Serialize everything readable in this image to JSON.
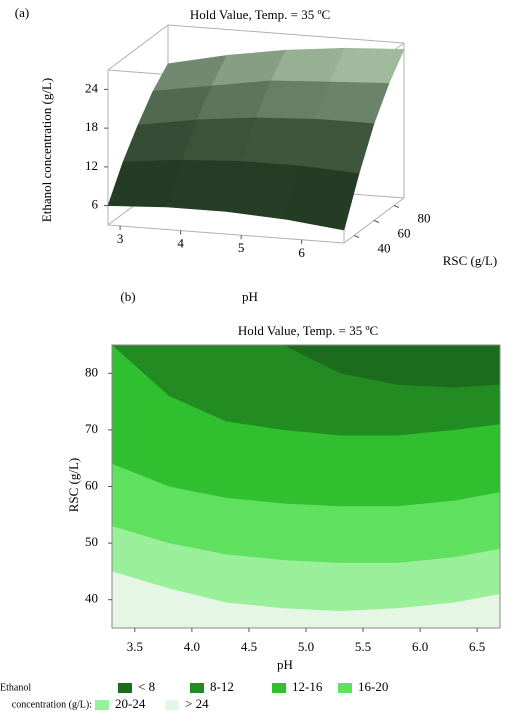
{
  "chart_data": [
    {
      "type": "surface",
      "panel": "(a)",
      "title": "Hold Value, Temp. = 35 ºC",
      "xlabel": "pH",
      "ylabel": "RSC (g/L)",
      "zlabel": "Ethanol concentration (g/L)",
      "x": [
        2.8,
        3.775,
        4.75,
        5.725,
        6.7
      ],
      "y": [
        30,
        45,
        60,
        75,
        90
      ],
      "z": [
        [
          6,
          6.5,
          6.5,
          6,
          5
        ],
        [
          11,
          12,
          12.5,
          12.5,
          12
        ],
        [
          15,
          16.5,
          17.5,
          18,
          18
        ],
        [
          18.5,
          20,
          21.5,
          22,
          22.5
        ],
        [
          21,
          23,
          24.5,
          25.5,
          26
        ]
      ],
      "xlim": [
        2.8,
        6.7
      ],
      "ylim": [
        30,
        90
      ],
      "zlim": [
        3,
        27
      ],
      "xticks": [
        3,
        4,
        5,
        6
      ],
      "yticks": [
        40,
        60,
        80
      ],
      "zticks": [
        6,
        12,
        18,
        24
      ]
    },
    {
      "type": "contour",
      "panel": "(b)",
      "title": "Hold Value, Temp. = 35 ºC",
      "xlabel": "pH",
      "ylabel": "RSC (g/L)",
      "legend_title": [
        "Ethanol",
        "concentration (g/L):"
      ],
      "x": [
        3.3,
        3.8,
        4.3,
        4.8,
        5.3,
        5.8,
        6.3,
        6.7
      ],
      "regions": [
        {
          "name": "< 8",
          "color": "#1d6b1d"
        },
        {
          "name": "8-12",
          "color": "#228b22"
        },
        {
          "name": "12-16",
          "color": "#2fbf2f"
        },
        {
          "name": "16-20",
          "color": "#5fe05f"
        },
        {
          "name": "20-24",
          "color": "#9af09a"
        },
        {
          "name": "> 24",
          "color": "#e6f6e4"
        }
      ],
      "boundaries": [
        [
          null,
          null,
          null,
          85,
          80,
          78,
          77.5,
          78
        ],
        [
          85,
          76,
          71.5,
          70,
          69,
          69,
          70,
          71
        ],
        [
          64,
          60,
          58,
          57,
          56.5,
          56.5,
          57.5,
          59
        ],
        [
          53,
          50,
          48,
          47,
          46.5,
          46.5,
          47.5,
          49
        ],
        [
          45,
          42,
          39.5,
          38.5,
          38,
          38.5,
          39.5,
          41
        ]
      ],
      "xlim": [
        3.3,
        6.7
      ],
      "ylim": [
        35,
        85
      ],
      "xticks": [
        3.5,
        {
          "value": 4,
          "label": "4.0"
        },
        4.5,
        {
          "value": 5,
          "label": "5.0"
        },
        5.5,
        {
          "value": 6,
          "label": "6.0"
        },
        6.5
      ],
      "yticks": [
        40,
        50,
        60,
        70,
        80
      ]
    }
  ]
}
